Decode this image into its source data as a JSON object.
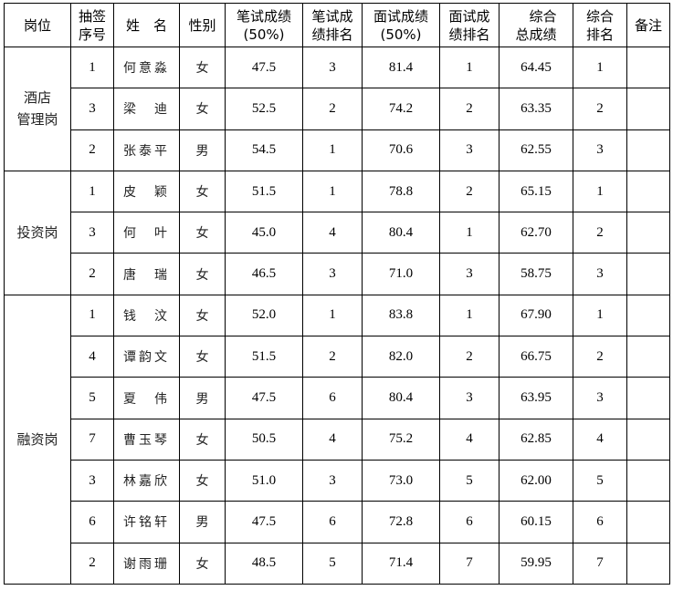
{
  "headers": [
    "岗位",
    "抽签序号",
    "姓　名",
    "性别",
    "笔试成绩(50%)",
    "笔试成绩排名",
    "面试成绩(50%)",
    "面试成绩排名",
    "综合总成绩",
    "综合排名",
    "备注"
  ],
  "header_lines": [
    [
      "岗位"
    ],
    [
      "抽签",
      "序号"
    ],
    [
      "姓　名"
    ],
    [
      "性别"
    ],
    [
      "笔试成绩",
      "(50%)"
    ],
    [
      "笔试成",
      "绩排名"
    ],
    [
      "面试成绩",
      "(50%)"
    ],
    [
      "面试成",
      "绩排名"
    ],
    [
      "综合",
      "总成绩"
    ],
    [
      "综合",
      "排名"
    ],
    [
      "备注"
    ]
  ],
  "groups": [
    {
      "post_lines": [
        "酒店",
        "管理岗"
      ],
      "rows": [
        {
          "draw": "1",
          "name": "何意淼",
          "sex": "女",
          "written": "47.5",
          "written_rank": "3",
          "interview": "81.4",
          "interview_rank": "1",
          "total": "64.45",
          "total_rank": "1",
          "note": ""
        },
        {
          "draw": "3",
          "name": "梁　迪",
          "sex": "女",
          "written": "52.5",
          "written_rank": "2",
          "interview": "74.2",
          "interview_rank": "2",
          "total": "63.35",
          "total_rank": "2",
          "note": ""
        },
        {
          "draw": "2",
          "name": "张泰平",
          "sex": "男",
          "written": "54.5",
          "written_rank": "1",
          "interview": "70.6",
          "interview_rank": "3",
          "total": "62.55",
          "total_rank": "3",
          "note": ""
        }
      ]
    },
    {
      "post_lines": [
        "投资岗"
      ],
      "rows": [
        {
          "draw": "1",
          "name": "皮　颖",
          "sex": "女",
          "written": "51.5",
          "written_rank": "1",
          "interview": "78.8",
          "interview_rank": "2",
          "total": "65.15",
          "total_rank": "1",
          "note": ""
        },
        {
          "draw": "3",
          "name": "何　叶",
          "sex": "女",
          "written": "45.0",
          "written_rank": "4",
          "interview": "80.4",
          "interview_rank": "1",
          "total": "62.70",
          "total_rank": "2",
          "note": ""
        },
        {
          "draw": "2",
          "name": "唐　瑞",
          "sex": "女",
          "written": "46.5",
          "written_rank": "3",
          "interview": "71.0",
          "interview_rank": "3",
          "total": "58.75",
          "total_rank": "3",
          "note": ""
        }
      ]
    },
    {
      "post_lines": [
        "融资岗"
      ],
      "rows": [
        {
          "draw": "1",
          "name": "钱　汶",
          "sex": "女",
          "written": "52.0",
          "written_rank": "1",
          "interview": "83.8",
          "interview_rank": "1",
          "total": "67.90",
          "total_rank": "1",
          "note": ""
        },
        {
          "draw": "4",
          "name": "谭韵文",
          "sex": "女",
          "written": "51.5",
          "written_rank": "2",
          "interview": "82.0",
          "interview_rank": "2",
          "total": "66.75",
          "total_rank": "2",
          "note": ""
        },
        {
          "draw": "5",
          "name": "夏　伟",
          "sex": "男",
          "written": "47.5",
          "written_rank": "6",
          "interview": "80.4",
          "interview_rank": "3",
          "total": "63.95",
          "total_rank": "3",
          "note": ""
        },
        {
          "draw": "7",
          "name": "曹玉琴",
          "sex": "女",
          "written": "50.5",
          "written_rank": "4",
          "interview": "75.2",
          "interview_rank": "4",
          "total": "62.85",
          "total_rank": "4",
          "note": ""
        },
        {
          "draw": "3",
          "name": "林嘉欣",
          "sex": "女",
          "written": "51.0",
          "written_rank": "3",
          "interview": "73.0",
          "interview_rank": "5",
          "total": "62.00",
          "total_rank": "5",
          "note": ""
        },
        {
          "draw": "6",
          "name": "许铭轩",
          "sex": "男",
          "written": "47.5",
          "written_rank": "6",
          "interview": "72.8",
          "interview_rank": "6",
          "total": "60.15",
          "total_rank": "6",
          "note": ""
        },
        {
          "draw": "2",
          "name": "谢雨珊",
          "sex": "女",
          "written": "48.5",
          "written_rank": "5",
          "interview": "71.4",
          "interview_rank": "7",
          "total": "59.95",
          "total_rank": "7",
          "note": ""
        }
      ]
    }
  ]
}
